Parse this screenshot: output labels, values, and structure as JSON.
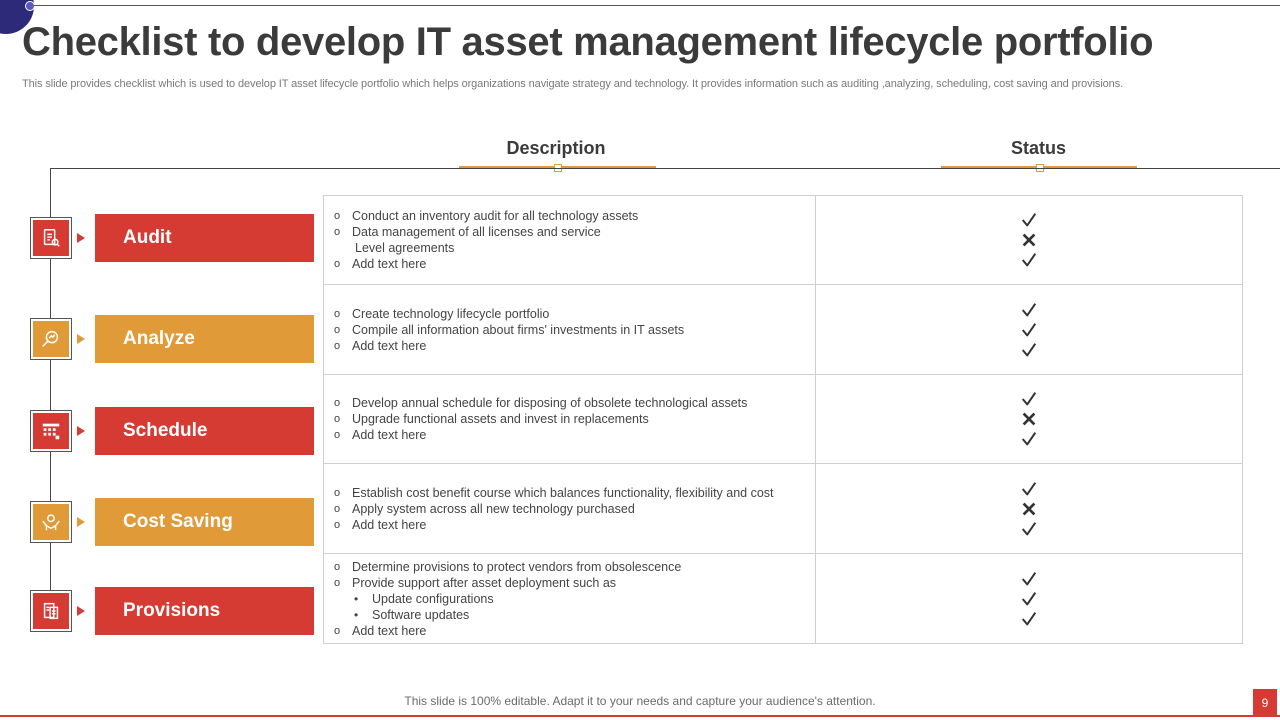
{
  "title": "Checklist to develop IT asset management lifecycle portfolio",
  "subtitle": "This slide provides checklist which is used to develop IT  asset lifecycle portfolio which helps organizations navigate strategy and technology. It provides information such as auditing ,analyzing, scheduling, cost saving and provisions.",
  "columns": {
    "description": "Description",
    "status": "Status"
  },
  "colors": {
    "red": "#d53a33",
    "orange": "#e09a37",
    "accent_dark": "#2d2a7a"
  },
  "stages": [
    {
      "label": "Audit",
      "color": "red",
      "icon": "audit-checklist-icon"
    },
    {
      "label": "Analyze",
      "color": "orange",
      "icon": "magnifier-chart-icon"
    },
    {
      "label": "Schedule",
      "color": "red",
      "icon": "calendar-icon"
    },
    {
      "label": "Cost Saving",
      "color": "orange",
      "icon": "hand-money-icon"
    },
    {
      "label": "Provisions",
      "color": "red",
      "icon": "document-building-icon"
    }
  ],
  "rows": [
    {
      "lines": [
        {
          "marker": "o",
          "text": "Conduct  an inventory  audit for all technology assets"
        },
        {
          "marker": "o",
          "text": "Data  management  of all licenses and  service"
        },
        {
          "marker": "",
          "text": "Level  agreements",
          "cont": true
        },
        {
          "marker": "o",
          "text": "Add text here"
        }
      ],
      "status": [
        "check",
        "cross",
        "check"
      ]
    },
    {
      "lines": [
        {
          "marker": "o",
          "text": "Create technology lifecycle portfolio"
        },
        {
          "marker": "o",
          "text": "Compile  all information  about firms'  investments in IT  assets"
        },
        {
          "marker": "o",
          "text": "Add text here"
        }
      ],
      "status": [
        "check",
        "check",
        "check"
      ]
    },
    {
      "lines": [
        {
          "marker": "o",
          "text": "Develop  annual  schedule for disposing of obsolete technological assets"
        },
        {
          "marker": "o",
          "text": "Upgrade  functional  assets and invest  in replacements"
        },
        {
          "marker": "o",
          "text": "Add text here"
        }
      ],
      "status": [
        "check",
        "cross",
        "check"
      ]
    },
    {
      "lines": [
        {
          "marker": "o",
          "text": "Establish cost benefit  course which balances functionality, flexibility and cost"
        },
        {
          "marker": "o",
          "text": "Apply system across all new technology purchased"
        },
        {
          "marker": "o",
          "text": "Add text here"
        }
      ],
      "status": [
        "check",
        "cross",
        "check"
      ]
    },
    {
      "lines": [
        {
          "marker": "o",
          "text": "Determine  provisions  to protect vendors  from  obsolescence"
        },
        {
          "marker": "o",
          "text": "Provide  support  after  asset deployment  such as"
        },
        {
          "marker": "•",
          "text": "Update  configurations",
          "sub": true
        },
        {
          "marker": "•",
          "text": "Software  updates",
          "sub": true
        },
        {
          "marker": "o",
          "text": "Add text here"
        }
      ],
      "status": [
        "check",
        "check",
        "check"
      ]
    }
  ],
  "footer": "This slide is 100% editable. Adapt it to your needs and capture your audience's attention.",
  "page_number": "9"
}
